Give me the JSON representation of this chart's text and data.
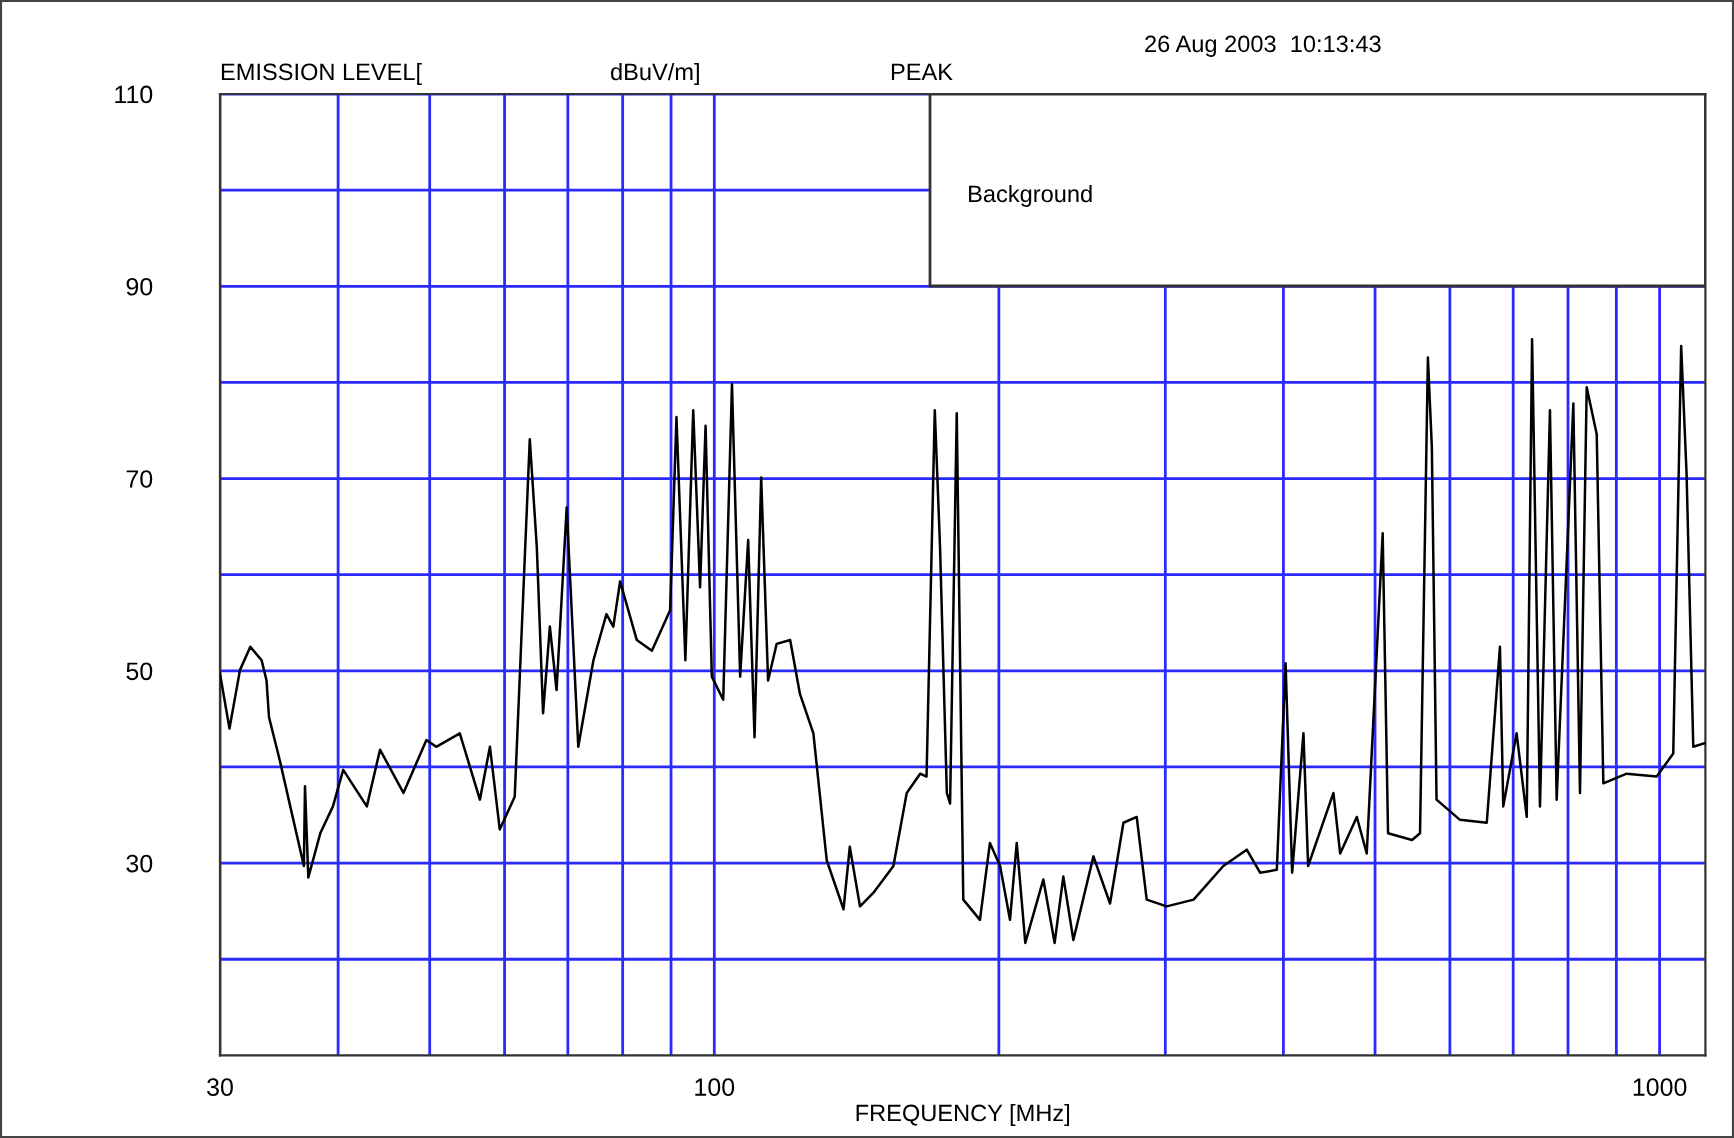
{
  "chart_data": {
    "type": "line",
    "xlabel": "FREQUENCY [MHz]",
    "annotations": [
      "EMISSION LEVEL[",
      "dBuV/m]",
      "PEAK",
      "26 Aug 2003  10:13:43",
      "Background"
    ],
    "log": "x",
    "xlim": [
      30,
      1118
    ],
    "ylim": [
      10,
      110
    ],
    "xticks": [
      30,
      {
        "value": 40,
        "label": null
      },
      {
        "value": 50,
        "label": null
      },
      {
        "value": 60,
        "label": null
      },
      {
        "value": 70,
        "label": null
      },
      {
        "value": 80,
        "label": null
      },
      {
        "value": 90,
        "label": null
      },
      100,
      {
        "value": 200,
        "label": null
      },
      {
        "value": 300,
        "label": null
      },
      {
        "value": 400,
        "label": null
      },
      {
        "value": 500,
        "label": null
      },
      {
        "value": 600,
        "label": null
      },
      {
        "value": 700,
        "label": null
      },
      {
        "value": 800,
        "label": null
      },
      {
        "value": 900,
        "label": null
      },
      1000
    ],
    "yticks": [
      {
        "value": 20,
        "label": null
      },
      30,
      {
        "value": 40,
        "label": null
      },
      50,
      {
        "value": 60,
        "label": null
      },
      70,
      {
        "value": 80,
        "label": null
      },
      90,
      {
        "value": 100,
        "label": null
      },
      110
    ],
    "grid": true,
    "marker": "none",
    "line_style": "solid",
    "series": [
      {
        "color": "#000000",
        "x": [
          30,
          30.7,
          31.5,
          32.3,
          33.2,
          33.6,
          33.8,
          34.7,
          35.6,
          36.8,
          36.9,
          37.2,
          38.3,
          39.5,
          40.5,
          42.9,
          44.3,
          46.9,
          49.6,
          50.8,
          53.8,
          56.5,
          57.9,
          59.3,
          61.5,
          63.8,
          64.9,
          65.9,
          67.0,
          68.1,
          69.8,
          71.8,
          74.5,
          76.9,
          78.2,
          79.5,
          82.8,
          85.9,
          89.8,
          91.2,
          93.2,
          95.0,
          96.6,
          97.9,
          99.4,
          102.2,
          104.4,
          106.5,
          108.6,
          110.3,
          112.1,
          114.0,
          116.4,
          120.3,
          123.2,
          127.3,
          131.5,
          137.0,
          139.1,
          142.6,
          147.3,
          154.7,
          159.8,
          165.1,
          167.7,
          171.1,
          173.3,
          176.2,
          177.6,
          180.5,
          183.4,
          191.0,
          195.7,
          200.6,
          205.5,
          208.9,
          213.3,
          222.9,
          229.1,
          234.0,
          239.8,
          251.8,
          262.2,
          270.9,
          279.8,
          286.7,
          301.0,
          321.4,
          345.5,
          365.8,
          377.9,
          393.6,
          402.1,
          408.6,
          420.0,
          424.8,
          451.8,
          459.3,
          478.3,
          490.0,
          509.4,
          516.1,
          547.2,
          557.9,
          568.7,
          574.2,
          580.8,
          614.9,
          656.4,
          677.8,
          683.3,
          705.9,
          723.5,
          733.0,
          747.2,
          765.6,
          778.2,
          810.5,
          823.7,
          837.3,
          858.0,
          871.9,
          922.9,
          992.8,
          1033.8,
          1053.9,
          1067.9,
          1085.5,
          1117.7
        ],
        "values": [
          49.7,
          44.0,
          50.1,
          52.5,
          51.1,
          49.0,
          45.2,
          40.7,
          35.9,
          29.7,
          38.0,
          28.5,
          33.1,
          35.9,
          39.7,
          35.9,
          41.8,
          37.3,
          42.8,
          42.1,
          43.5,
          36.6,
          42.1,
          33.5,
          36.9,
          74.1,
          62.9,
          45.6,
          54.6,
          48.0,
          67.0,
          42.1,
          51.1,
          55.9,
          54.6,
          59.3,
          53.2,
          52.1,
          56.3,
          76.4,
          51.1,
          77.1,
          58.7,
          75.5,
          49.4,
          47.0,
          79.8,
          49.4,
          63.6,
          43.1,
          70.1,
          49.0,
          52.8,
          53.2,
          47.6,
          43.5,
          30.3,
          25.2,
          31.7,
          25.5,
          26.9,
          29.7,
          37.3,
          39.3,
          39.0,
          77.1,
          62.9,
          37.3,
          36.2,
          76.8,
          26.2,
          24.1,
          32.1,
          29.7,
          24.1,
          32.1,
          21.7,
          28.3,
          21.7,
          28.6,
          22.0,
          30.7,
          25.8,
          34.2,
          34.8,
          26.2,
          25.5,
          26.2,
          29.7,
          31.4,
          29.0,
          29.3,
          50.8,
          29.0,
          43.5,
          29.7,
          37.3,
          31.0,
          34.8,
          31.0,
          64.3,
          33.1,
          32.4,
          33.1,
          82.6,
          73.3,
          36.6,
          34.5,
          34.2,
          52.5,
          35.9,
          43.5,
          34.8,
          84.5,
          35.9,
          77.1,
          36.6,
          77.8,
          37.3,
          79.5,
          74.6,
          38.3,
          39.3,
          39.0,
          41.4,
          83.8,
          70.5,
          42.1,
          42.5
        ]
      }
    ]
  }
}
